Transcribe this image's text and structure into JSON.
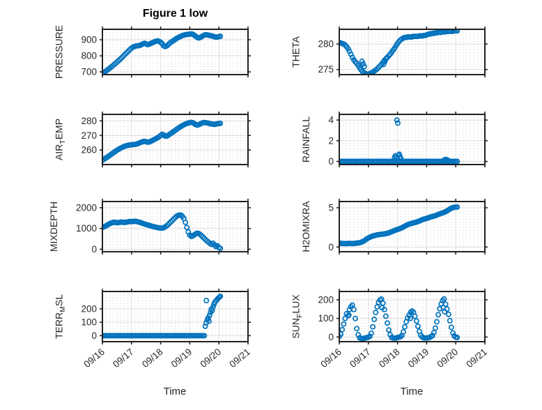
{
  "title": "Figure 1 low",
  "xlabel": "Time",
  "x_axis": {
    "range": [
      0,
      5
    ],
    "tick_labels": [
      "09/16",
      "09/17",
      "09/18",
      "09/19",
      "09/20",
      "09/21"
    ],
    "minor_per_day": 8
  },
  "style": {
    "marker_color": "#0072BD",
    "axis_color": "#212121",
    "text_color": "#262626",
    "major_grid_color": "#dcdcdc",
    "minor_grid_color": "#cfcfcf",
    "background": "#ffffff"
  },
  "chart_data": [
    {
      "name": "PRESSURE",
      "type": "scatter",
      "marker": "circle",
      "ylabel_parts": [
        {
          "t": "PRESSURE"
        }
      ],
      "ylim": [
        683,
        965
      ],
      "yticks": [
        700,
        800,
        900
      ],
      "x0": 0,
      "dx": 0.05,
      "values": [
        690,
        696,
        702,
        709,
        716,
        723,
        730,
        737,
        745,
        753,
        761,
        769,
        777,
        786,
        795,
        804,
        813,
        822,
        831,
        840,
        848,
        854,
        858,
        861,
        862,
        863,
        866,
        870,
        875,
        878,
        874,
        870,
        872,
        876,
        880,
        884,
        888,
        891,
        893,
        890,
        884,
        876,
        862,
        858,
        861,
        868,
        876,
        884,
        890,
        896,
        902,
        908,
        913,
        918,
        922,
        926,
        929,
        931,
        933,
        934,
        935,
        936,
        934,
        929,
        922,
        915,
        911,
        913,
        918,
        924,
        929,
        931,
        930,
        928,
        926,
        924,
        921,
        918,
        916,
        917,
        919,
        921
      ]
    },
    {
      "name": "THETA",
      "type": "scatter",
      "marker": "circle",
      "ylabel_parts": [
        {
          "t": "THETA"
        }
      ],
      "ylim": [
        274.0,
        282.9
      ],
      "yticks": [
        275,
        280
      ],
      "x0": 0,
      "dx": 0.05,
      "values": [
        280.3,
        280.2,
        280.1,
        280.0,
        279.8,
        279.5,
        279.1,
        278.6,
        278.0,
        277.4,
        276.9,
        276.5,
        276.2,
        275.8,
        275.3,
        274.9,
        274.6,
        274.4,
        274.2,
        274.1,
        274.1,
        274.2,
        274.3,
        274.5,
        274.7,
        274.9,
        275.1,
        275.4,
        275.7,
        276.0,
        276.4,
        276.8,
        277.1,
        277.4,
        277.7,
        278.0,
        278.4,
        278.8,
        279.2,
        279.7,
        280.1,
        280.5,
        280.8,
        281.0,
        281.2,
        281.3,
        281.3,
        281.4,
        281.4,
        281.4,
        281.4,
        281.5,
        281.5,
        281.5,
        281.5,
        281.6,
        281.6,
        281.6,
        281.7,
        281.7,
        281.8,
        281.9,
        282.0,
        282.0,
        282.1,
        282.1,
        282.2,
        282.2,
        282.3,
        282.3,
        282.3,
        282.4,
        282.4,
        282.4,
        282.5,
        282.5,
        282.5,
        282.5,
        282.5,
        282.6,
        282.6,
        282.6
      ],
      "points": [
        [
          0.78,
          276.6
        ],
        [
          0.82,
          276.1
        ],
        [
          0.86,
          275.6
        ],
        [
          1.52,
          276.0
        ],
        [
          1.57,
          276.6
        ],
        [
          1.62,
          277.2
        ]
      ]
    },
    {
      "name": "AIR_TEMP",
      "type": "scatter",
      "marker": "circle",
      "ylabel_parts": [
        {
          "t": "AIR"
        },
        {
          "t": "T",
          "sub": true
        },
        {
          "t": "EMP"
        }
      ],
      "ylim": [
        250,
        284.5
      ],
      "yticks": [
        260,
        270,
        280
      ],
      "x0": 0,
      "dx": 0.05,
      "values": [
        253.0,
        253.6,
        254.2,
        254.9,
        255.6,
        256.3,
        257.0,
        257.7,
        258.4,
        259.1,
        259.8,
        260.4,
        261.0,
        261.5,
        262.0,
        262.4,
        262.8,
        263.1,
        263.3,
        263.5,
        263.6,
        263.7,
        263.8,
        264.0,
        264.3,
        264.7,
        265.1,
        265.5,
        265.8,
        265.9,
        265.7,
        265.4,
        265.5,
        265.9,
        266.4,
        266.9,
        267.4,
        267.9,
        268.5,
        269.2,
        270.0,
        270.8,
        270.4,
        269.6,
        269.5,
        270.0,
        270.7,
        271.4,
        272.1,
        272.8,
        273.5,
        274.2,
        274.9,
        275.6,
        276.2,
        276.8,
        277.3,
        277.8,
        278.2,
        278.5,
        278.8,
        279.0,
        278.8,
        278.2,
        277.5,
        277.1,
        277.3,
        277.8,
        278.3,
        278.7,
        278.9,
        278.8,
        278.6,
        278.4,
        278.1,
        277.9,
        277.7,
        277.6,
        277.8,
        278.0,
        278.2,
        278.3
      ]
    },
    {
      "name": "RAINFALL",
      "type": "scatter",
      "marker": "circle",
      "ylabel_parts": [
        {
          "t": "RAINFALL"
        }
      ],
      "ylim": [
        -0.3,
        4.55
      ],
      "yticks": [
        0,
        2,
        4
      ],
      "x0": 0,
      "dx": 0.05,
      "values": [
        0,
        0,
        0,
        0,
        0,
        0,
        0,
        0,
        0,
        0,
        0,
        0,
        0,
        0,
        0,
        0,
        0,
        0,
        0,
        0,
        0,
        0,
        0,
        0,
        0,
        0,
        0,
        0,
        0,
        0,
        0,
        0,
        0,
        0,
        0,
        0,
        0,
        0,
        0,
        0,
        0,
        0,
        0,
        0,
        0,
        0,
        0,
        0,
        0,
        0,
        0,
        0,
        0,
        0,
        0,
        0,
        0,
        0,
        0,
        0,
        0,
        0,
        0,
        0,
        0,
        0,
        0,
        0,
        0,
        0,
        0,
        0,
        0,
        0,
        0,
        0,
        0,
        0,
        0,
        0,
        0,
        0
      ],
      "points": [
        [
          1.9,
          0.4
        ],
        [
          1.93,
          0.55
        ],
        [
          1.96,
          0.35
        ],
        [
          1.98,
          4.0
        ],
        [
          2.01,
          3.7
        ],
        [
          2.03,
          0.6
        ],
        [
          2.06,
          0.7
        ],
        [
          2.09,
          0.45
        ],
        [
          2.12,
          0.25
        ],
        [
          3.58,
          0.1
        ],
        [
          3.62,
          0.16
        ],
        [
          3.66,
          0.2
        ],
        [
          3.7,
          0.15
        ],
        [
          3.74,
          0.1
        ]
      ]
    },
    {
      "name": "MIXDEPTH",
      "type": "scatter",
      "marker": "circle",
      "ylabel_parts": [
        {
          "t": "MIXDEPTH"
        }
      ],
      "ylim": [
        -120,
        2300
      ],
      "yticks": [
        0,
        1000,
        2000
      ],
      "x0": 0,
      "dx": 0.05,
      "values": [
        1050,
        1080,
        1110,
        1150,
        1190,
        1230,
        1260,
        1285,
        1300,
        1290,
        1275,
        1285,
        1300,
        1310,
        1300,
        1290,
        1300,
        1315,
        1330,
        1340,
        1330,
        1340,
        1350,
        1345,
        1330,
        1310,
        1290,
        1265,
        1240,
        1215,
        1190,
        1170,
        1150,
        1130,
        1110,
        1090,
        1070,
        1055,
        1040,
        1030,
        1020,
        1015,
        1035,
        1070,
        1120,
        1180,
        1250,
        1320,
        1390,
        1460,
        1530,
        1590,
        1630,
        1650,
        1640,
        1580,
        1480,
        1300,
        1050,
        830,
        680,
        620,
        640,
        690,
        740,
        770,
        760,
        720,
        660,
        590,
        520,
        450,
        390,
        330,
        270,
        230,
        290,
        210,
        130,
        170,
        80,
        40
      ]
    },
    {
      "name": "H2OMIXRA",
      "type": "scatter",
      "marker": "circle",
      "ylabel_parts": [
        {
          "t": "H2OMIXRA"
        }
      ],
      "ylim": [
        -0.6,
        5.8
      ],
      "yticks": [
        0,
        5
      ],
      "x0": 0,
      "dx": 0.05,
      "values": [
        0.5,
        0.48,
        0.45,
        0.44,
        0.43,
        0.44,
        0.45,
        0.46,
        0.45,
        0.44,
        0.45,
        0.47,
        0.5,
        0.52,
        0.55,
        0.6,
        0.68,
        0.78,
        0.9,
        1.05,
        1.15,
        1.25,
        1.33,
        1.4,
        1.45,
        1.5,
        1.55,
        1.58,
        1.6,
        1.63,
        1.65,
        1.68,
        1.7,
        1.75,
        1.8,
        1.88,
        1.95,
        2.02,
        2.1,
        2.18,
        2.25,
        2.3,
        2.38,
        2.45,
        2.55,
        2.65,
        2.75,
        2.85,
        2.92,
        2.98,
        3.02,
        3.08,
        3.12,
        3.18,
        3.25,
        3.32,
        3.4,
        3.48,
        3.55,
        3.6,
        3.65,
        3.7,
        3.78,
        3.85,
        3.9,
        3.95,
        4.0,
        4.08,
        4.15,
        4.22,
        4.3,
        4.35,
        4.42,
        4.5,
        4.6,
        4.72,
        4.85,
        4.95,
        5.02,
        5.06,
        5.08,
        5.1
      ]
    },
    {
      "name": "TERR_MSL",
      "type": "scatter",
      "marker": "circle",
      "ylabel_parts": [
        {
          "t": "TERR"
        },
        {
          "t": "M",
          "sub": true
        },
        {
          "t": "SL"
        }
      ],
      "ylim": [
        -45,
        330
      ],
      "yticks": [
        0,
        100,
        200
      ],
      "x0": 0,
      "dx": 0.05,
      "values": [
        0,
        0,
        0,
        0,
        0,
        0,
        0,
        0,
        0,
        0,
        0,
        0,
        0,
        0,
        0,
        0,
        0,
        0,
        0,
        0,
        0,
        0,
        0,
        0,
        0,
        0,
        0,
        0,
        0,
        0,
        0,
        0,
        0,
        0,
        0,
        0,
        0,
        0,
        0,
        0,
        0,
        0,
        0,
        0,
        0,
        0,
        0,
        0,
        0,
        0,
        0,
        0,
        0,
        0,
        0,
        0,
        0,
        0,
        0,
        0,
        0,
        0,
        0,
        0,
        0,
        0,
        0,
        0,
        0,
        0,
        0
      ],
      "points": [
        [
          3.53,
          70
        ],
        [
          3.56,
          95
        ],
        [
          3.57,
          262
        ],
        [
          3.6,
          118
        ],
        [
          3.63,
          132
        ],
        [
          3.66,
          108
        ],
        [
          3.68,
          152
        ],
        [
          3.71,
          173
        ],
        [
          3.74,
          198
        ],
        [
          3.77,
          186
        ],
        [
          3.8,
          214
        ],
        [
          3.83,
          233
        ],
        [
          3.86,
          248
        ],
        [
          3.9,
          260
        ],
        [
          3.94,
          270
        ],
        [
          3.98,
          280
        ],
        [
          4.02,
          288
        ],
        [
          4.05,
          294
        ]
      ]
    },
    {
      "name": "SUN_FLUX",
      "type": "scatter",
      "marker": "circle",
      "ylabel_parts": [
        {
          "t": "SUN"
        },
        {
          "t": "F",
          "sub": true
        },
        {
          "t": "LUX"
        }
      ],
      "ylim": [
        -25,
        245
      ],
      "yticks": [
        0,
        100,
        200
      ],
      "x0": 0,
      "dx": 0.05,
      "values": [
        3,
        15,
        40,
        70,
        100,
        125,
        115,
        148,
        163,
        172,
        148,
        100,
        45,
        12,
        -4,
        -7,
        -8,
        -7,
        -5,
        -3,
        -1,
        4,
        20,
        55,
        95,
        132,
        162,
        186,
        199,
        204,
        182,
        148,
        112,
        75,
        38,
        12,
        -2,
        -5,
        -6,
        -5,
        -3,
        -1,
        2,
        8,
        28,
        55,
        82,
        103,
        118,
        132,
        140,
        133,
        112,
        86,
        58,
        30,
        10,
        0,
        -4,
        -5,
        -5,
        -4,
        -2,
        2,
        8,
        24,
        48,
        82,
        120,
        152,
        178,
        196,
        205,
        176,
        150,
        122,
        88,
        52,
        22,
        6,
        -1,
        -2
      ],
      "points": [
        [
          0.33,
          118
        ],
        [
          1.47,
          158
        ],
        [
          2.44,
          100
        ],
        [
          3.57,
          160
        ],
        [
          3.62,
          136
        ]
      ]
    }
  ]
}
